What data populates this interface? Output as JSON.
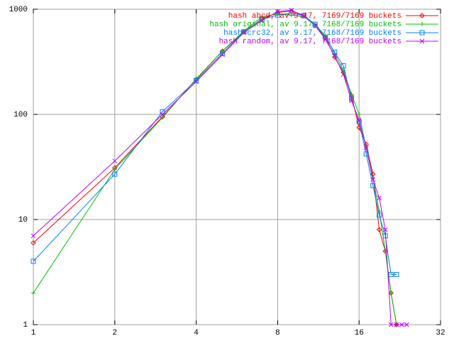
{
  "chart_data": {
    "type": "line",
    "xscale": "log",
    "yscale": "log",
    "grid": true,
    "legend": "top-right",
    "x": [
      1,
      2,
      3,
      4,
      5,
      6,
      7,
      8,
      9,
      10,
      11,
      12,
      13,
      14,
      15,
      16,
      17,
      18,
      19,
      20,
      21,
      22,
      23,
      24
    ],
    "xlim": [
      1,
      32
    ],
    "xticks": [
      1,
      2,
      4,
      8,
      16,
      32
    ],
    "ylim": [
      1,
      1000
    ],
    "yticks": [
      1,
      10,
      100,
      1000
    ],
    "series": [
      {
        "name": "hash abcd, av 9.17, 7169/7169 buckets",
        "color": "#ff0000",
        "marker": "diamond",
        "values": [
          6,
          31,
          95,
          215,
          400,
          610,
          810,
          930,
          960,
          880,
          700,
          540,
          350,
          250,
          150,
          75,
          52,
          27,
          8,
          5,
          2,
          1,
          null,
          null
        ]
      },
      {
        "name": "hash original, av 9.17, 7168/7169 buckets",
        "color": "#00c000",
        "marker": "plus",
        "values": [
          2,
          30,
          93,
          218,
          400,
          620,
          850,
          900,
          880,
          850,
          720,
          560,
          380,
          260,
          155,
          100,
          48,
          25,
          12,
          5,
          2,
          1,
          null,
          null
        ]
      },
      {
        "name": "hash crc32, av 9.17, 7168/7169 buckets",
        "color": "#0080ff",
        "marker": "square",
        "values": [
          4,
          27,
          106,
          210,
          380,
          610,
          800,
          880,
          920,
          870,
          720,
          540,
          390,
          290,
          140,
          85,
          42,
          21,
          11,
          7,
          3,
          3,
          null,
          null
        ]
      },
      {
        "name": "hash random, av 9.17, 7168/7169 buckets",
        "color": "#c000ff",
        "marker": "cross",
        "values": [
          7,
          36,
          100,
          205,
          370,
          600,
          780,
          950,
          980,
          860,
          700,
          520,
          360,
          240,
          135,
          88,
          48,
          24,
          16,
          8,
          1,
          1,
          1,
          1
        ]
      }
    ]
  }
}
